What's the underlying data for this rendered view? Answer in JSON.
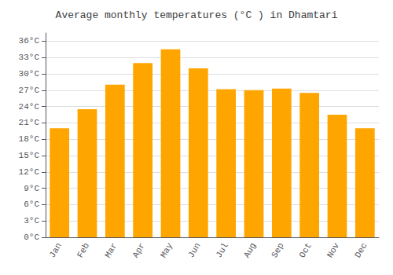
{
  "chart_data": {
    "type": "bar",
    "title": "Average monthly temperatures (°C ) in Dhamtari",
    "categories": [
      "Jan",
      "Feb",
      "Mar",
      "Apr",
      "May",
      "Jun",
      "Jul",
      "Aug",
      "Sep",
      "Oct",
      "Nov",
      "Dec"
    ],
    "values": [
      20,
      23.5,
      28,
      32,
      34.5,
      31,
      27.2,
      27,
      27.3,
      26.5,
      22.5,
      20
    ],
    "color": "#FFA500",
    "ylim": [
      0,
      37.5
    ],
    "yticks": [
      {
        "value": 0,
        "label": "0°C"
      },
      {
        "value": 3,
        "label": "3°C"
      },
      {
        "value": 6,
        "label": "6°C"
      },
      {
        "value": 9,
        "label": "9°C"
      },
      {
        "value": 12,
        "label": "12°C"
      },
      {
        "value": 15,
        "label": "15°C"
      },
      {
        "value": 18,
        "label": "18°C"
      },
      {
        "value": 21,
        "label": "21°C"
      },
      {
        "value": 24,
        "label": "24°C"
      },
      {
        "value": 27,
        "label": "27°C"
      },
      {
        "value": 30,
        "label": "30°C"
      },
      {
        "value": 33,
        "label": "33°C"
      },
      {
        "value": 36,
        "label": "36°C"
      }
    ],
    "grid": true
  }
}
